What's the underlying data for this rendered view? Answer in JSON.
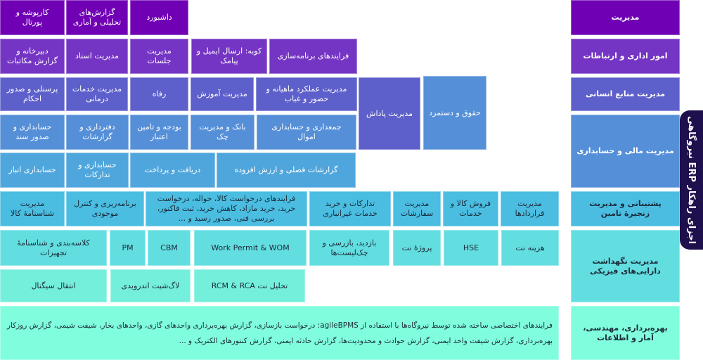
{
  "side_tab": {
    "label": "اجزای راهکار ERP نیروگاهی"
  },
  "colors": {
    "row1": "#7000b4",
    "row2": "#7535c4",
    "row3": "#5d5fca",
    "row4": "#558fd8",
    "row5": "#4fa6dc",
    "row6": "#4abde1",
    "row7": "#63dee0",
    "row8": "#74efdc",
    "row9": "#80fddc",
    "tab": "#1e0f4d"
  },
  "categories": [
    {
      "label": "مدیریت"
    },
    {
      "label": "امور اداری و ارتباطات"
    },
    {
      "label": "مدیریت منابع انسانی"
    },
    {
      "label": "مدیریت مالی و حسابداری"
    },
    {
      "label": "پشتیبانی و مدیریت زنجیرهٔ تامین"
    },
    {
      "label": "مدیریت نگهداشت دارایی‌های فیزیکی"
    },
    {
      "label": "بهره‌برداری، مهندسی، آمار و اطلاعات"
    }
  ],
  "modules": {
    "management": [
      "داشبورد",
      "گزارش‌های تحلیلی و آماری",
      "کارپوشه و پورتال"
    ],
    "admin": [
      "فرایندهای برنامه‌سازی",
      "کوبه: ارسال ایمیل و پیامک",
      "مدیریت جلسات",
      "مدیریت اسناد",
      "دبیرخانه و گزارش مکاتبات"
    ],
    "hr": [
      "حقوق و دستمزد",
      "مدیریت پاداش",
      "مدیریت عملکرد ماهیانه و حضور و غیاب",
      "مدیریت آموزش",
      "رفاه",
      "مدیریت خدمات درمانی",
      "پرسنلی و صدور احکام"
    ],
    "finance_1": [
      "جمعداری و حسابداری اموال",
      "بانک و مدیریت چک",
      "بودجه و تامین اعتبار",
      "دفترداری و گزارشات",
      "حسابداری و صدور سند"
    ],
    "finance_2": [
      "گزارشات فصلی و ارزش افزوده",
      "دریافت و پرداخت",
      "حسابداری و تدارکات",
      "حسابداری انبار"
    ],
    "supply": [
      "مدیریت قراردادها",
      "فروش کالا و خدمات",
      "مدیریت سفارشات",
      "تدارکات و خرید خدمات غیرانباری",
      "فرایندهای درخواست کالا، حواله، درخواست خرید، خرید مازاد، کاهش خرید، ثبت فاکتور، بررسی فنی، صدور رسید و ...",
      "برنامه‌ریزی و کنترل موجودی",
      "مدیریت شناسنامهٔ کالا"
    ],
    "maintenance_1": [
      "هزینه نت",
      "HSE",
      "پروژهٔ نت",
      "بازدید، بازرسی و چک‌لیست‌ها",
      "Work Permit & WOM",
      "CBM",
      "PM",
      "کلاسه‌بندی و شناسنامهٔ تجهیزات"
    ],
    "maintenance_2": [
      "تحلیل نت RCM & RCA",
      "لاگ‌شیت اندرویدی",
      "انتقال سیگنال"
    ],
    "operations": [
      "فرایندهای اختصاصی ساخته شده توسط نیروگاه‌ها با استفاده از agileBPMS: درخواست بازسازی، گزارش بهره‌برداری واحدهای گازی، واحدهای بخار، شیفت شیمی، گزارش روزکار بهره‌برداری، گزارش شیفت واحد ایمنی، گزارش حوادث و محدودیت‌ها، گزارش حادثه ایمنی، گزارش کنتورهای الکتریک و ..."
    ]
  }
}
